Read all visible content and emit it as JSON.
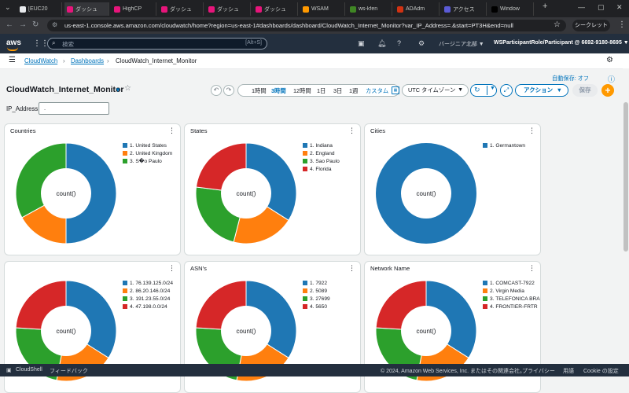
{
  "browser": {
    "tabs": [
      {
        "label": "[EUC20",
        "color": "#e8eaed"
      },
      {
        "label": "ダッシュ",
        "color": "#e7157b"
      },
      {
        "label": "HighCP",
        "color": "#e7157b"
      },
      {
        "label": "ダッシュ",
        "color": "#e7157b"
      },
      {
        "label": "ダッシュ",
        "color": "#e7157b"
      },
      {
        "label": "ダッシュ",
        "color": "#e7157b"
      },
      {
        "label": "WSAM",
        "color": "#ff9900"
      },
      {
        "label": "ws-kfen",
        "color": "#3f8624"
      },
      {
        "label": "ADAdm",
        "color": "#d13212"
      },
      {
        "label": "アクセス",
        "color": "#5b5bd6"
      },
      {
        "label": "Window",
        "color": "#000000"
      }
    ],
    "url": "us-east-1.console.aws.amazon.com/cloudwatch/home?region=us-east-1#dashboards/dashboard/CloudWatch_Internet_Monitor?var_IP_Address=.&start=PT3H&end=null",
    "incognito_label": "シークレット"
  },
  "aws_header": {
    "logo": "aws",
    "search_placeholder": "検索",
    "search_shortcut": "[Alt+S]",
    "region": "バージニア北部 ▼",
    "account": "WSParticipantRole/Participant @ 6692-9180-8695 ▼"
  },
  "breadcrumb": {
    "items": [
      "CloudWatch",
      "Dashboards",
      "CloudWatch_Internet_Monitor"
    ]
  },
  "dashboard": {
    "title": "CloudWatch_Internet_Monitor",
    "autosave": "自動保存: オフ",
    "time_ranges": [
      "1時間",
      "3時間",
      "12時間",
      "1日",
      "3日",
      "1週"
    ],
    "selected_range": "3時間",
    "custom_label": "カスタム",
    "timezone": "UTC タイムゾーン",
    "action_label": "アクション",
    "save_label": "保存",
    "variable_label": "IP_Address:",
    "variable_value": "."
  },
  "colors": {
    "blue": "#1f77b4",
    "orange": "#ff7f0e",
    "green": "#2ca02c",
    "red": "#d62728"
  },
  "widgets": [
    {
      "title": "Countries",
      "center_label": "count()",
      "chart_data": {
        "type": "pie",
        "labels": [
          "1. United States",
          "2. United Kingdom",
          "3. S�o Paulo"
        ],
        "values": [
          50,
          17,
          33
        ]
      }
    },
    {
      "title": "States",
      "center_label": "count()",
      "chart_data": {
        "type": "pie",
        "labels": [
          "1. Indiana",
          "2. England",
          "3. Sao Paulo",
          "4. Florida"
        ],
        "values": [
          34,
          20,
          23,
          23
        ]
      }
    },
    {
      "title": "Cities",
      "center_label": "count()",
      "chart_data": {
        "type": "pie",
        "labels": [
          "1. Germantown"
        ],
        "values": [
          100
        ]
      }
    },
    {
      "title": "",
      "center_label": "count()",
      "chart_data": {
        "type": "pie",
        "labels": [
          "1. 76.139.125.0/24",
          "2. 86.20.146.0/24",
          "3. 191.23.55.0/24",
          "4. 47.198.0.0/24"
        ],
        "values": [
          34,
          19,
          23,
          24
        ]
      }
    },
    {
      "title": "ASN's",
      "center_label": "count()",
      "chart_data": {
        "type": "pie",
        "labels": [
          "1. 7922",
          "2. 5089",
          "3. 27699",
          "4. 5650"
        ],
        "values": [
          34,
          19,
          23,
          24
        ]
      }
    },
    {
      "title": "Network Name",
      "center_label": "count()",
      "chart_data": {
        "type": "pie",
        "labels": [
          "1. COMCAST-7922",
          "2. Virgin Media",
          "3. TELEFONICA BRA...",
          "4. FRONTIER-FRTR"
        ],
        "values": [
          34,
          19,
          23,
          24
        ]
      }
    }
  ],
  "footer": {
    "cloudshell": "CloudShell",
    "feedback": "フィードバック",
    "copyright": "© 2024, Amazon Web Services, Inc. またはその関連会社。",
    "privacy": "プライバシー",
    "terms": "用語",
    "cookie": "Cookie の設定"
  }
}
